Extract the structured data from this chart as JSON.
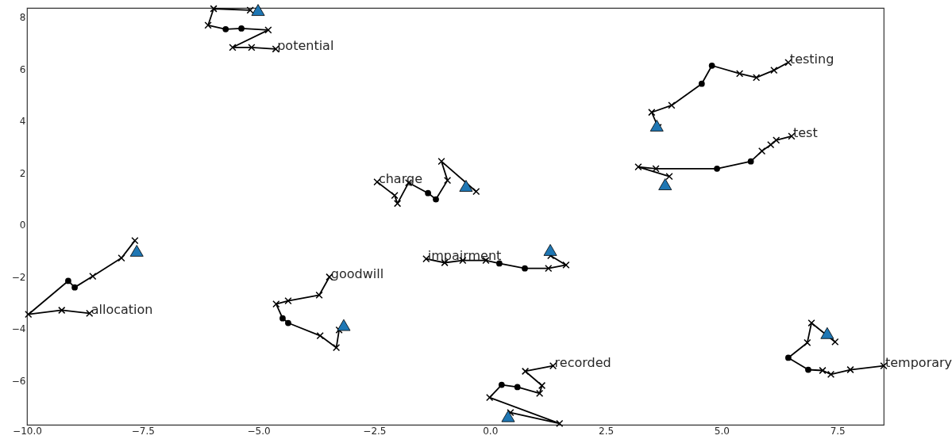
{
  "chart_data": {
    "type": "line",
    "xlim": [
      -10,
      8.5
    ],
    "ylim": [
      -7.7,
      8.35
    ],
    "xticks": [
      {
        "value": -10,
        "label": "−10.0"
      },
      {
        "value": -7.5,
        "label": "−7.5"
      },
      {
        "value": -5,
        "label": "−5.0"
      },
      {
        "value": -2.5,
        "label": "−2.5"
      },
      {
        "value": 0,
        "label": "0.0"
      },
      {
        "value": 2.5,
        "label": "2.5"
      },
      {
        "value": 5,
        "label": "5.0"
      },
      {
        "value": 7.5,
        "label": "7.5"
      }
    ],
    "yticks": [
      {
        "value": -6,
        "label": "−6"
      },
      {
        "value": -4,
        "label": "−4"
      },
      {
        "value": -2,
        "label": "−2"
      },
      0,
      2,
      4,
      6,
      8
    ],
    "grid": false,
    "line_style": "solid",
    "series": [
      {
        "name": "potential",
        "color": "#000000",
        "marker": "none",
        "x": [
          -4.63,
          -5.15,
          -5.56,
          -4.79,
          -5.37,
          -5.71,
          -6.09,
          -5.97,
          -5.18
        ],
        "values": [
          6.77,
          6.83,
          6.83,
          7.5,
          7.56,
          7.53,
          7.68,
          8.32,
          8.26
        ]
      },
      {
        "name": "testing",
        "color": "#000000",
        "marker": "none",
        "x": [
          6.44,
          6.13,
          5.75,
          5.39,
          4.79,
          4.57,
          3.92,
          3.49,
          3.63
        ],
        "values": [
          6.25,
          5.95,
          5.67,
          5.82,
          6.13,
          5.43,
          4.6,
          4.33,
          3.75
        ]
      },
      {
        "name": "test",
        "color": "#000000",
        "marker": "none",
        "x": [
          6.51,
          6.18,
          6.06,
          5.87,
          5.63,
          4.9,
          3.58,
          3.2,
          3.87
        ],
        "values": [
          3.41,
          3.26,
          3.08,
          2.84,
          2.44,
          2.16,
          2.16,
          2.23,
          1.86
        ]
      },
      {
        "name": "charge",
        "color": "#000000",
        "marker": "none",
        "x": [
          -2.44,
          -2.06,
          -2.0,
          -1.76,
          -1.34,
          -1.17,
          -0.92,
          -1.05,
          -0.3
        ],
        "values": [
          1.65,
          1.13,
          0.82,
          1.62,
          1.22,
          0.98,
          1.71,
          2.44,
          1.28
        ]
      },
      {
        "name": "allocation",
        "color": "#000000",
        "marker": "none",
        "x": [
          -8.65,
          -9.25,
          -9.97,
          -9.11,
          -8.97,
          -8.58,
          -7.96,
          -7.67
        ],
        "values": [
          -3.41,
          -3.29,
          -3.45,
          -2.16,
          -2.41,
          -1.98,
          -1.28,
          -0.61
        ]
      },
      {
        "name": "goodwill",
        "color": "#000000",
        "marker": "none",
        "x": [
          -3.47,
          -3.69,
          -4.36,
          -4.62,
          -4.48,
          -4.36,
          -3.67,
          -3.32,
          -3.26
        ],
        "values": [
          -2.01,
          -2.71,
          -2.93,
          -3.05,
          -3.6,
          -3.78,
          -4.27,
          -4.73,
          -4.05
        ]
      },
      {
        "name": "impairment",
        "color": "#000000",
        "marker": "none",
        "x": [
          -1.38,
          -0.98,
          -0.59,
          -0.09,
          0.2,
          0.75,
          1.26,
          1.64,
          1.31
        ],
        "values": [
          -1.31,
          -1.46,
          -1.37,
          -1.37,
          -1.49,
          -1.68,
          -1.68,
          -1.55,
          -1.19
        ]
      },
      {
        "name": "recorded",
        "color": "#000000",
        "marker": "none",
        "x": [
          1.36,
          0.76,
          1.12,
          1.07,
          0.59,
          0.25,
          -0.01,
          1.5,
          0.44
        ],
        "values": [
          -5.43,
          -5.64,
          -6.19,
          -6.49,
          -6.25,
          -6.16,
          -6.65,
          -7.65,
          -7.23
        ]
      },
      {
        "name": "temporary",
        "color": "#000000",
        "marker": "none",
        "x": [
          8.5,
          7.78,
          7.36,
          7.18,
          6.87,
          6.44,
          6.85,
          6.94,
          7.45
        ],
        "values": [
          -5.43,
          -5.58,
          -5.76,
          -5.61,
          -5.58,
          -5.12,
          -4.54,
          -3.78,
          -4.51
        ]
      },
      {
        "type": "scatter",
        "marker": "cross",
        "color": "#000000",
        "x": [
          -4.63,
          -5.15,
          -5.56,
          -4.79,
          -6.09,
          -5.97,
          -5.18,
          6.44,
          6.13,
          5.75,
          5.39,
          3.92,
          3.49,
          3.63,
          6.51,
          6.18,
          6.06,
          5.87,
          3.58,
          3.2,
          3.87,
          -2.44,
          -2.06,
          -2.0,
          -1.76,
          -0.92,
          -1.05,
          -0.3,
          -8.65,
          -9.25,
          -9.97,
          -8.58,
          -7.96,
          -7.67,
          -3.47,
          -3.69,
          -4.36,
          -4.62,
          -3.67,
          -3.32,
          -3.26,
          -1.38,
          -0.98,
          -0.59,
          -0.09,
          1.26,
          1.64,
          1.31,
          1.36,
          0.76,
          1.12,
          1.07,
          -0.01,
          1.5,
          0.44,
          8.5,
          7.78,
          7.36,
          7.18,
          6.85,
          6.94,
          7.45
        ],
        "values": [
          6.77,
          6.83,
          6.83,
          7.5,
          7.68,
          8.32,
          8.26,
          6.25,
          5.95,
          5.67,
          5.82,
          4.6,
          4.33,
          3.75,
          3.41,
          3.26,
          3.08,
          2.84,
          2.16,
          2.23,
          1.86,
          1.65,
          1.13,
          0.82,
          1.62,
          1.71,
          2.44,
          1.28,
          -3.41,
          -3.29,
          -3.45,
          -1.98,
          -1.28,
          -0.61,
          -2.01,
          -2.71,
          -2.93,
          -3.05,
          -4.27,
          -4.73,
          -4.05,
          -1.31,
          -1.46,
          -1.37,
          -1.37,
          -1.68,
          -1.55,
          -1.19,
          -5.43,
          -5.64,
          -6.19,
          -6.49,
          -6.65,
          -7.65,
          -7.23,
          -5.43,
          -5.58,
          -5.76,
          -5.61,
          -4.54,
          -3.78,
          -4.51
        ]
      },
      {
        "type": "scatter",
        "marker": "circle",
        "color": "#000000",
        "x": [
          -5.37,
          -5.71,
          4.79,
          4.57,
          5.63,
          4.9,
          -1.34,
          -1.17,
          -9.11,
          -8.97,
          -4.48,
          -4.36,
          0.2,
          0.75,
          0.59,
          0.25,
          6.87,
          6.44
        ],
        "values": [
          7.56,
          7.53,
          6.13,
          5.43,
          2.44,
          2.16,
          1.22,
          0.98,
          -2.16,
          -2.41,
          -3.6,
          -3.78,
          -1.49,
          -1.68,
          -6.25,
          -6.16,
          -5.58,
          -5.12
        ]
      },
      {
        "type": "scatter",
        "marker": "triangle",
        "color": "#1f77b4",
        "x": [
          -5.01,
          3.6,
          3.78,
          -0.52,
          -7.63,
          -3.16,
          1.3,
          0.39,
          7.28
        ],
        "values": [
          8.2,
          3.75,
          1.49,
          1.43,
          -1.07,
          -3.93,
          -1.04,
          -7.44,
          -4.24
        ]
      }
    ]
  }
}
